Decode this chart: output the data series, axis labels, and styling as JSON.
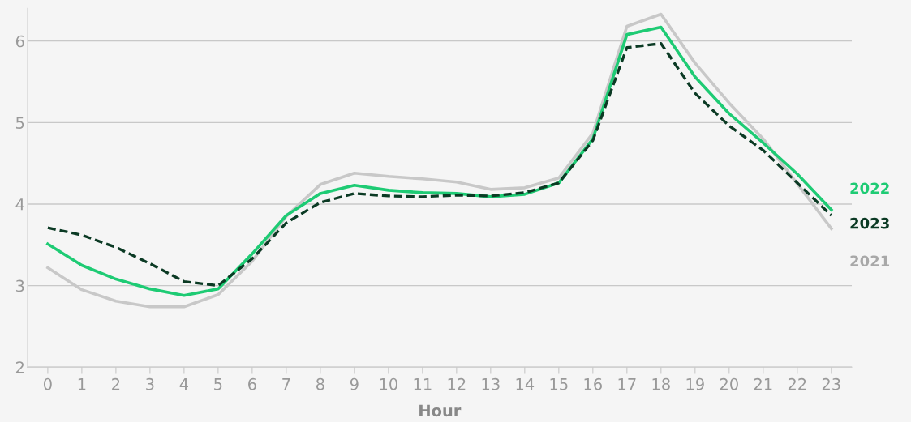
{
  "chart_data": {
    "type": "line",
    "xlabel": "Hour",
    "x": [
      0,
      1,
      2,
      3,
      4,
      5,
      6,
      7,
      8,
      9,
      10,
      11,
      12,
      13,
      14,
      15,
      16,
      17,
      18,
      19,
      20,
      21,
      22,
      23
    ],
    "xlim": [
      -0.6,
      23.6
    ],
    "xticks": [
      0,
      1,
      2,
      3,
      4,
      5,
      6,
      7,
      8,
      9,
      10,
      11,
      12,
      13,
      14,
      15,
      16,
      17,
      18,
      19,
      20,
      21,
      22,
      23
    ],
    "ylim": [
      2,
      6.4
    ],
    "yticks": [
      2,
      3,
      4,
      5,
      6
    ],
    "grid": "y",
    "legend": false,
    "series": [
      {
        "name": "2021",
        "color": "#c8c8c8",
        "line_style": "solid",
        "values": [
          3.22,
          2.95,
          2.81,
          2.74,
          2.74,
          2.89,
          3.3,
          3.85,
          4.24,
          4.38,
          4.34,
          4.31,
          4.27,
          4.18,
          4.2,
          4.32,
          4.87,
          6.18,
          6.33,
          5.73,
          5.24,
          4.8,
          4.25,
          3.7
        ]
      },
      {
        "name": "2022",
        "color": "#1ecb74",
        "line_style": "solid",
        "values": [
          3.51,
          3.25,
          3.08,
          2.96,
          2.88,
          2.96,
          3.39,
          3.86,
          4.13,
          4.23,
          4.17,
          4.14,
          4.13,
          4.09,
          4.12,
          4.26,
          4.8,
          6.08,
          6.17,
          5.56,
          5.11,
          4.75,
          4.37,
          3.93
        ]
      },
      {
        "name": "2023",
        "color": "#0b3a24",
        "line_style": "dashed",
        "values": [
          3.71,
          3.62,
          3.47,
          3.27,
          3.05,
          3.0,
          3.33,
          3.77,
          4.02,
          4.13,
          4.1,
          4.09,
          4.11,
          4.1,
          4.14,
          4.26,
          4.78,
          5.92,
          5.97,
          5.36,
          4.96,
          4.66,
          4.26,
          3.86
        ]
      }
    ]
  }
}
